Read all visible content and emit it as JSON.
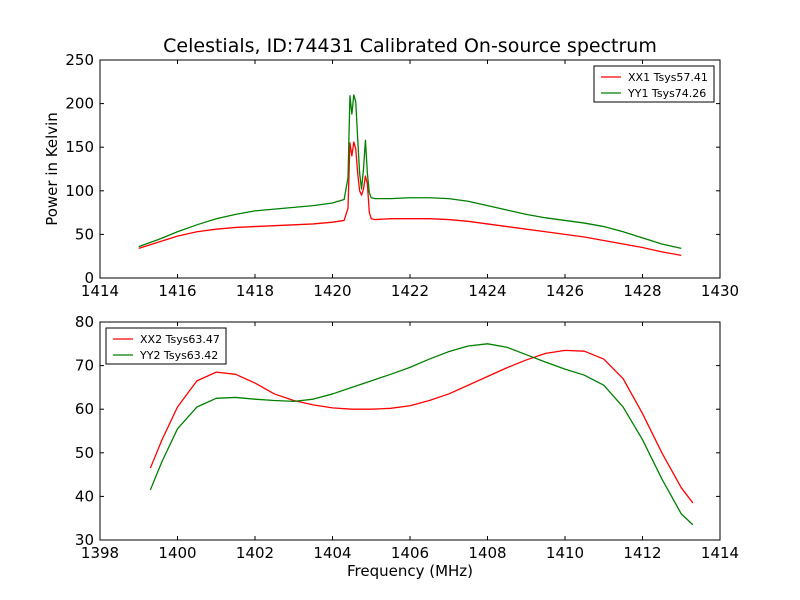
{
  "title": "Celestials, ID:74431 Calibrated On-source spectrum",
  "chart_data": [
    {
      "type": "line",
      "id": "top",
      "xlabel": "",
      "ylabel": "Power in Kelvin",
      "xlim": [
        1414,
        1430
      ],
      "ylim": [
        0,
        250
      ],
      "xticks": [
        1414,
        1416,
        1418,
        1420,
        1422,
        1424,
        1426,
        1428,
        1430
      ],
      "yticks": [
        0,
        50,
        100,
        150,
        200,
        250
      ],
      "legend": "top-right",
      "grid": false,
      "series": [
        {
          "name": "XX1 Tsys57.41",
          "color": "#ff0000",
          "x": [
            1415.0,
            1415.5,
            1416.0,
            1416.5,
            1417.0,
            1417.5,
            1418.0,
            1418.5,
            1419.0,
            1419.5,
            1420.0,
            1420.3,
            1420.4,
            1420.45,
            1420.5,
            1420.55,
            1420.6,
            1420.65,
            1420.7,
            1420.75,
            1420.8,
            1420.85,
            1420.9,
            1420.95,
            1421.0,
            1421.1,
            1421.5,
            1422.0,
            1422.5,
            1423.0,
            1423.5,
            1424.0,
            1424.5,
            1425.0,
            1425.5,
            1426.0,
            1426.5,
            1427.0,
            1427.5,
            1428.0,
            1428.5,
            1429.0
          ],
          "y": [
            34,
            41,
            48,
            53,
            56,
            58,
            59,
            60,
            61,
            62,
            64,
            66,
            80,
            155,
            140,
            156,
            148,
            120,
            100,
            95,
            102,
            117,
            108,
            75,
            68,
            67,
            68,
            68,
            68,
            67,
            65,
            62,
            59,
            56,
            53,
            50,
            47,
            43,
            39,
            35,
            30,
            26
          ]
        },
        {
          "name": "YY1 Tsys74.26",
          "color": "#008000",
          "x": [
            1415.0,
            1415.5,
            1416.0,
            1416.5,
            1417.0,
            1417.5,
            1418.0,
            1418.5,
            1419.0,
            1419.5,
            1420.0,
            1420.3,
            1420.4,
            1420.45,
            1420.5,
            1420.55,
            1420.6,
            1420.65,
            1420.7,
            1420.75,
            1420.8,
            1420.85,
            1420.9,
            1420.95,
            1421.0,
            1421.1,
            1421.5,
            1422.0,
            1422.5,
            1423.0,
            1423.5,
            1424.0,
            1424.5,
            1425.0,
            1425.5,
            1426.0,
            1426.5,
            1427.0,
            1427.5,
            1428.0,
            1428.5,
            1429.0
          ],
          "y": [
            36,
            44,
            53,
            61,
            68,
            73,
            77,
            79,
            81,
            83,
            86,
            90,
            115,
            209,
            188,
            210,
            202,
            160,
            120,
            102,
            125,
            158,
            120,
            98,
            92,
            91,
            91,
            92,
            92,
            91,
            88,
            83,
            78,
            73,
            69,
            66,
            63,
            59,
            53,
            46,
            39,
            34
          ]
        }
      ]
    },
    {
      "type": "line",
      "id": "bottom",
      "xlabel": "Frequency (MHz)",
      "ylabel": "",
      "xlim": [
        1398,
        1414
      ],
      "ylim": [
        30,
        80
      ],
      "xticks": [
        1398,
        1400,
        1402,
        1404,
        1406,
        1408,
        1410,
        1412,
        1414
      ],
      "yticks": [
        30,
        40,
        50,
        60,
        70,
        80
      ],
      "legend": "top-left",
      "grid": false,
      "series": [
        {
          "name": "XX2 Tsys63.47",
          "color": "#ff0000",
          "x": [
            1399.3,
            1399.6,
            1400.0,
            1400.5,
            1401.0,
            1401.5,
            1402.0,
            1402.5,
            1403.0,
            1403.5,
            1404.0,
            1404.5,
            1405.0,
            1405.5,
            1406.0,
            1406.5,
            1407.0,
            1407.5,
            1408.0,
            1408.5,
            1409.0,
            1409.5,
            1410.0,
            1410.5,
            1411.0,
            1411.5,
            1412.0,
            1412.5,
            1413.0,
            1413.3
          ],
          "y": [
            46.5,
            53,
            60.5,
            66.5,
            68.5,
            68,
            66,
            63.5,
            62,
            61,
            60.3,
            60,
            60,
            60.2,
            60.8,
            62,
            63.5,
            65.5,
            67.5,
            69.5,
            71.3,
            72.8,
            73.5,
            73.3,
            71.5,
            67,
            59,
            50,
            42,
            38.5
          ]
        },
        {
          "name": "YY2 Tsys63.42",
          "color": "#008000",
          "x": [
            1399.3,
            1399.6,
            1400.0,
            1400.5,
            1401.0,
            1401.5,
            1402.0,
            1402.5,
            1403.0,
            1403.5,
            1404.0,
            1404.5,
            1405.0,
            1405.5,
            1406.0,
            1406.5,
            1407.0,
            1407.5,
            1408.0,
            1408.5,
            1409.0,
            1409.5,
            1410.0,
            1410.5,
            1411.0,
            1411.5,
            1412.0,
            1412.5,
            1413.0,
            1413.3
          ],
          "y": [
            41.5,
            48,
            55.5,
            60.5,
            62.5,
            62.7,
            62.3,
            62,
            61.8,
            62.3,
            63.5,
            65,
            66.5,
            68,
            69.6,
            71.5,
            73.2,
            74.5,
            75,
            74.2,
            72.5,
            70.8,
            69.2,
            67.8,
            65.5,
            60.5,
            53,
            44,
            36,
            33.5
          ]
        }
      ]
    }
  ]
}
